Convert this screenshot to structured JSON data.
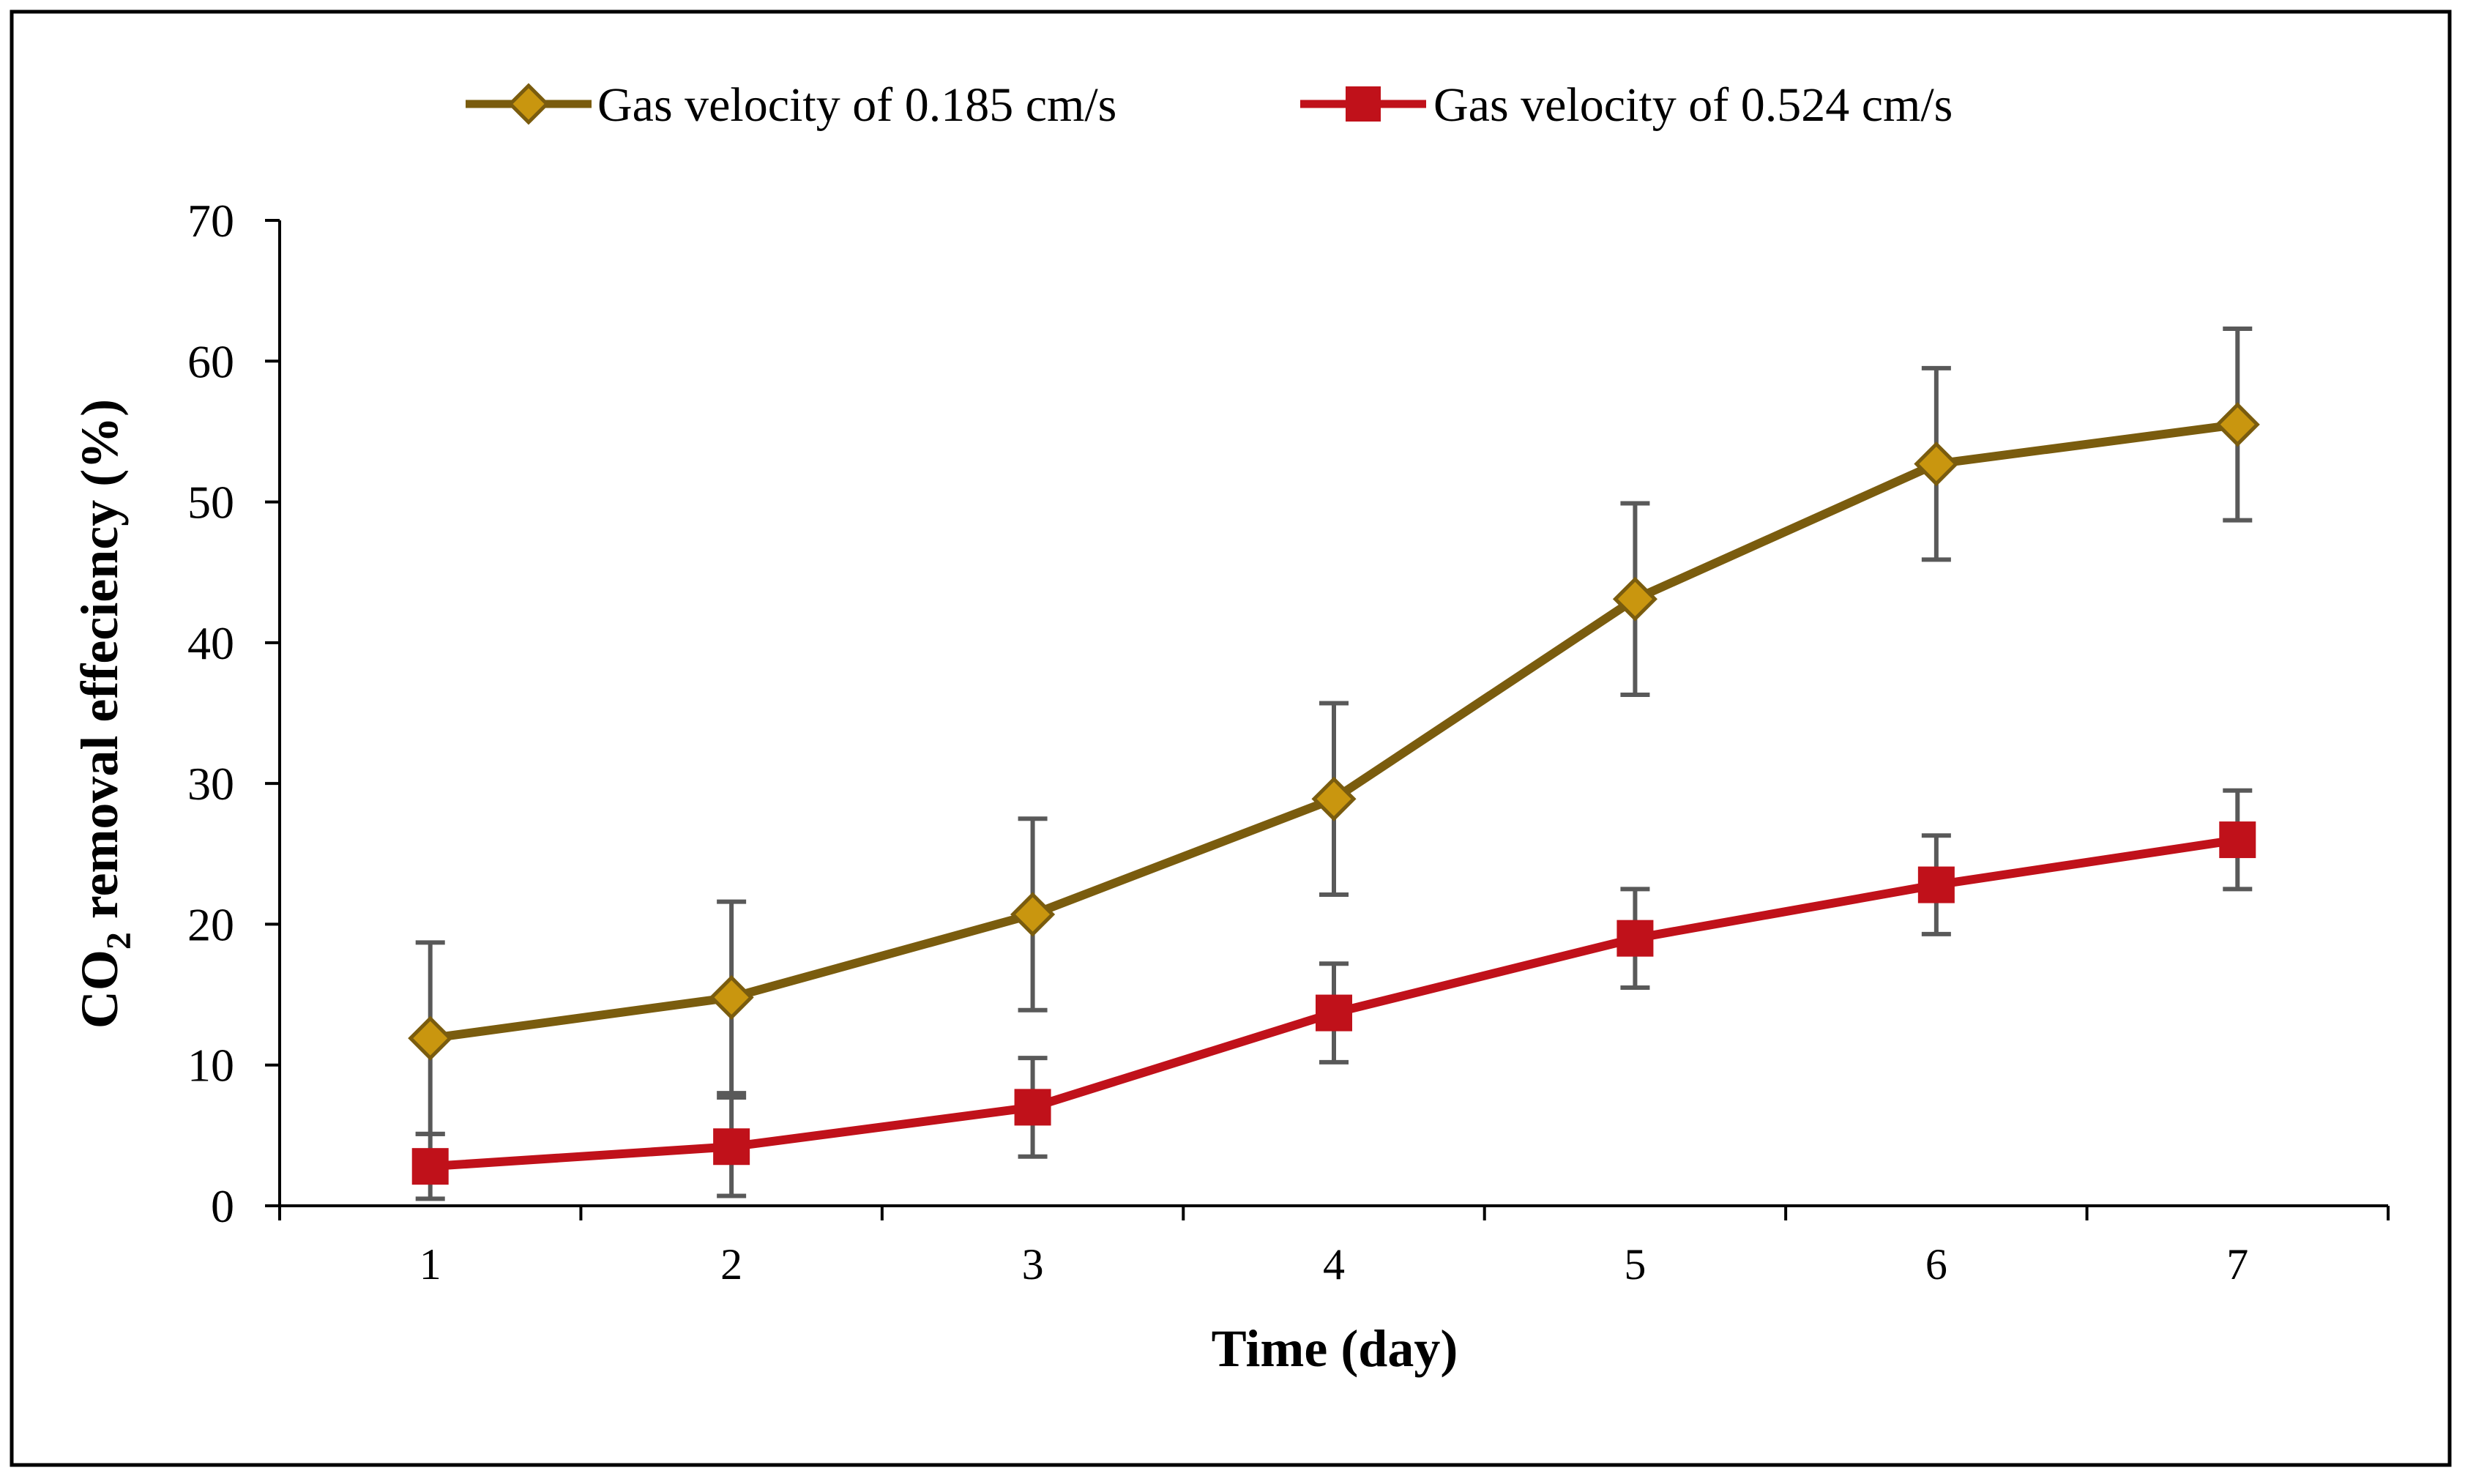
{
  "chart_data": {
    "type": "line",
    "title": "",
    "xlabel": "Time (day)",
    "ylabel": {
      "prefix": "CO",
      "subscript": "2",
      "suffix": " removal effeciency (%)"
    },
    "x": [
      1,
      2,
      3,
      4,
      5,
      6,
      7
    ],
    "xlim": [
      0.5,
      7.5
    ],
    "ylim": [
      0,
      70
    ],
    "yticks": [
      0,
      10,
      20,
      30,
      40,
      50,
      60,
      70
    ],
    "grid": false,
    "legend": "top-center",
    "series": [
      {
        "name": "Gas velocity of 0.185 cm/s",
        "color": "#7a5c0e",
        "marker": "diamond",
        "marker_fill": "#c9960f",
        "values": [
          11.9,
          14.8,
          20.7,
          28.9,
          43.1,
          52.7,
          55.5
        ],
        "errors": [
          6.8,
          6.8,
          6.8,
          6.8,
          6.8,
          6.8,
          6.8
        ]
      },
      {
        "name": "Gas velocity of 0.524 cm/s",
        "color": "#c0111a",
        "marker": "square",
        "marker_fill": "#c0111a",
        "values": [
          2.8,
          4.2,
          7.0,
          13.7,
          19.0,
          22.8,
          26.0
        ],
        "errors": [
          2.3,
          3.5,
          3.5,
          3.5,
          3.5,
          3.5,
          3.5
        ]
      }
    ],
    "error_bar_color": "#595959"
  }
}
